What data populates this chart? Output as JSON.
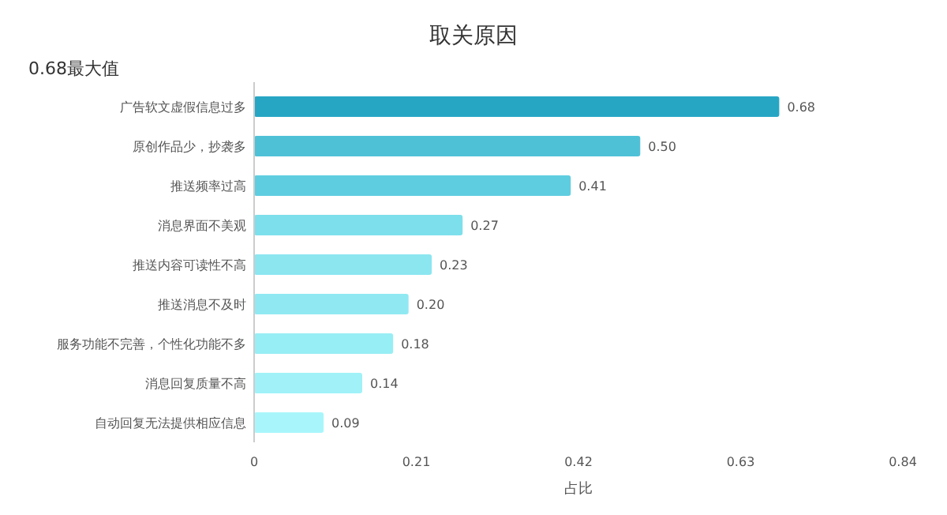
{
  "chart_data": {
    "type": "bar",
    "orientation": "horizontal",
    "title": "取关原因",
    "xlabel": "占比",
    "annotations": [
      "0.68最大值"
    ],
    "categories": [
      "广告软文虚假信息过多",
      "原创作品少，抄袭多",
      "推送频率过高",
      "消息界面不美观",
      "推送内容可读性不高",
      "推送消息不及时",
      "服务功能不完善，个性化功能不多",
      "消息回复质量不高",
      "自动回复无法提供相应信息"
    ],
    "values": [
      0.68,
      0.5,
      0.41,
      0.27,
      0.23,
      0.2,
      0.18,
      0.14,
      0.09
    ],
    "value_labels": [
      "0.68",
      "0.50",
      "0.41",
      "0.27",
      "0.23",
      "0.20",
      "0.18",
      "0.14",
      "0.09"
    ],
    "colors": [
      "#27a6c4",
      "#4fc1d7",
      "#5fcde0",
      "#7ddfeb",
      "#8be6f0",
      "#90e9f2",
      "#98eef5",
      "#a0f2f8",
      "#a8f6fb"
    ],
    "xlim": [
      0,
      0.84
    ],
    "xticks": [
      0,
      0.21,
      0.42,
      0.63,
      0.84
    ],
    "grid": false
  }
}
